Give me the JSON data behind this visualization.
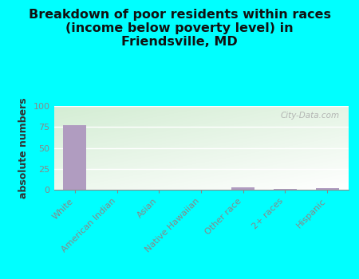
{
  "title": "Breakdown of poor residents within races\n(income below poverty level) in\nFriendsville, MD",
  "categories": [
    "White",
    "American Indian",
    "Asian",
    "Native Hawaiian",
    "Other race",
    "2+ races",
    "Hispanic"
  ],
  "values": [
    77,
    0,
    0,
    0,
    3,
    1,
    2
  ],
  "bar_color": "#b09cc0",
  "ylabel": "absolute numbers",
  "ylim": [
    0,
    100
  ],
  "yticks": [
    0,
    25,
    50,
    75,
    100
  ],
  "background_color": "#00ffff",
  "plot_bg_topleft": "#d4edda",
  "plot_bg_bottomright": "#f8fff8",
  "watermark": "City-Data.com",
  "title_fontsize": 11.5,
  "ylabel_fontsize": 9,
  "tick_fontsize": 8
}
